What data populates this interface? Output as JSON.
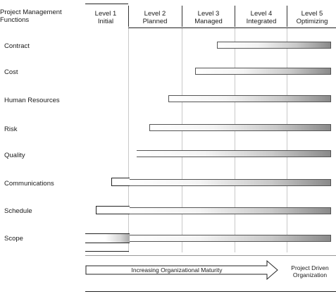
{
  "header": {
    "functions_line1": "Project Management",
    "functions_line2": "Functions",
    "levels": [
      {
        "num": "Level 1",
        "name": "Initial"
      },
      {
        "num": "Level 2",
        "name": "Planned"
      },
      {
        "num": "Level 3",
        "name": "Managed"
      },
      {
        "num": "Level 4",
        "name": "Integrated"
      },
      {
        "num": "Level 5",
        "name": "Optimizing"
      }
    ]
  },
  "rows": [
    {
      "label": "Contract"
    },
    {
      "label": "Cost"
    },
    {
      "label": "Human Resources"
    },
    {
      "label": "Risk"
    },
    {
      "label": "Quality"
    },
    {
      "label": "Communications"
    },
    {
      "label": "Schedule"
    },
    {
      "label": "Scope"
    }
  ],
  "footer": {
    "arrow_label": "Increasing Organizational Maturity",
    "pdo_line1": "Project Driven",
    "pdo_line2": "Organization"
  }
}
